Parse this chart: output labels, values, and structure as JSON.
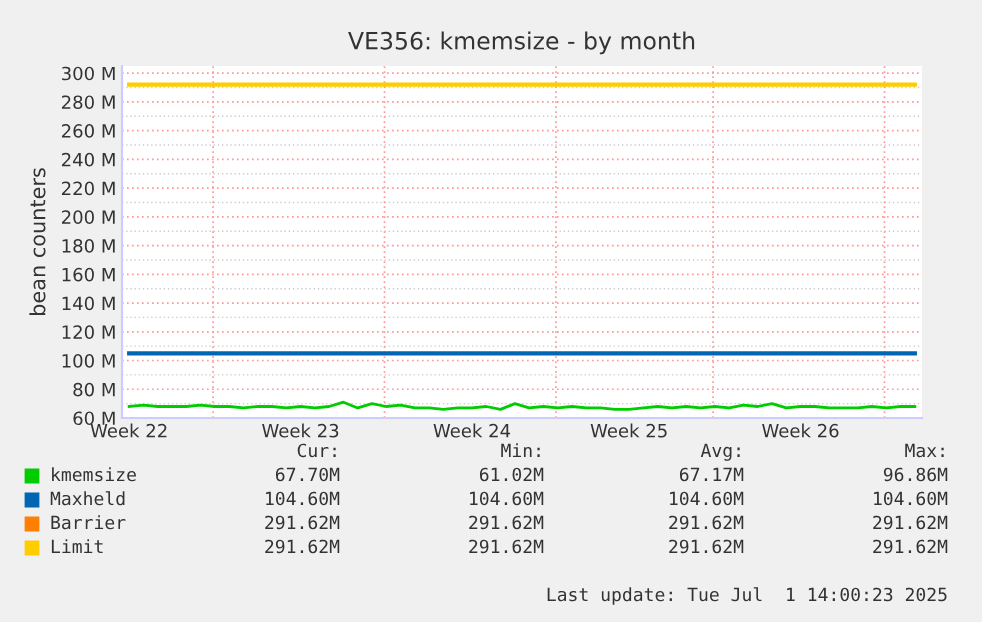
{
  "chart_data": {
    "type": "line",
    "title": "VE356: kmemsize - by month",
    "ylabel": "bean counters",
    "categories": [
      "Week 22",
      null,
      null,
      null,
      null,
      null,
      null,
      null,
      null,
      null,
      null,
      null,
      "Week 23",
      null,
      null,
      null,
      null,
      null,
      null,
      null,
      null,
      null,
      null,
      null,
      "Week 24",
      null,
      null,
      null,
      null,
      null,
      null,
      null,
      null,
      null,
      null,
      "Week 25",
      null,
      null,
      null,
      null,
      null,
      null,
      null,
      null,
      null,
      null,
      null,
      "Week 26",
      null,
      null,
      null,
      null,
      null,
      null,
      null,
      null
    ],
    "series": [
      {
        "name": "kmemsize",
        "color": "#00cc00",
        "values": [
          68,
          69,
          68,
          68,
          68,
          69,
          68,
          68,
          67,
          68,
          68,
          67,
          68,
          67,
          68,
          71,
          67,
          70,
          68,
          69,
          67,
          67,
          66,
          67,
          67,
          68,
          66,
          70,
          67,
          68,
          67,
          68,
          67,
          67,
          66,
          66,
          67,
          68,
          67,
          68,
          67,
          68,
          67,
          69,
          68,
          70,
          67,
          68,
          68,
          67,
          67,
          67,
          68,
          67,
          68,
          68
        ]
      },
      {
        "name": "Maxheld",
        "color": "#0066b3",
        "values": [
          105,
          105,
          105,
          105,
          105,
          105,
          105,
          105,
          105,
          105,
          105,
          105,
          105,
          105,
          105,
          105,
          105,
          105,
          105,
          105,
          105,
          105,
          105,
          105,
          105,
          105,
          105,
          105,
          105,
          105,
          105,
          105,
          105,
          105,
          105,
          105,
          105,
          105,
          105,
          105,
          105,
          105,
          105,
          105,
          105,
          105,
          105,
          105,
          105,
          105,
          105,
          105,
          105,
          105,
          105,
          105
        ]
      },
      {
        "name": "Barrier",
        "color": "#ff8000",
        "values": [
          null,
          null,
          null,
          null,
          null,
          null,
          null,
          null,
          null,
          null,
          null,
          null,
          null,
          null,
          null,
          null,
          null,
          null,
          null,
          null,
          null,
          null,
          null,
          null,
          null,
          null,
          null,
          null,
          null,
          null,
          null,
          null,
          null,
          null,
          null,
          null,
          null,
          null,
          null,
          null,
          null,
          null,
          null,
          null,
          null,
          null,
          null,
          null,
          null,
          null,
          null,
          null,
          null,
          null,
          null,
          null
        ]
      },
      {
        "name": "Limit",
        "color": "#ffcc00",
        "values": [
          292,
          292,
          292,
          292,
          292,
          292,
          292,
          292,
          292,
          292,
          292,
          292,
          292,
          292,
          292,
          292,
          292,
          292,
          292,
          292,
          292,
          292,
          292,
          292,
          292,
          292,
          292,
          292,
          292,
          292,
          292,
          292,
          292,
          292,
          292,
          292,
          292,
          292,
          292,
          292,
          292,
          292,
          292,
          292,
          292,
          292,
          292,
          292,
          292,
          292,
          292,
          292,
          292,
          292,
          292,
          292
        ]
      }
    ],
    "ylim": [
      60,
      305
    ],
    "yticks": [
      {
        "value": 60,
        "label": "60 M"
      },
      {
        "value": 80,
        "label": "80 M"
      },
      {
        "value": 100,
        "label": "100 M"
      },
      {
        "value": 120,
        "label": "120 M"
      },
      {
        "value": 140,
        "label": "140 M"
      },
      {
        "value": 160,
        "label": "160 M"
      },
      {
        "value": 180,
        "label": "180 M"
      },
      {
        "value": 200,
        "label": "200 M"
      },
      {
        "value": 220,
        "label": "220 M"
      },
      {
        "value": 240,
        "label": "240 M"
      },
      {
        "value": 260,
        "label": "260 M"
      },
      {
        "value": 280,
        "label": "280 M"
      },
      {
        "value": 300,
        "label": "300 M"
      }
    ],
    "grid": true,
    "legend": "bottom",
    "annotations": [
      "Cur:",
      "Min:",
      "Avg:",
      "Max:",
      "67.70M",
      "61.02M",
      "67.17M",
      "96.86M",
      "104.60M",
      "104.60M",
      "104.60M",
      "104.60M",
      "291.62M",
      "291.62M",
      "291.62M",
      "291.62M",
      "291.62M",
      "291.62M",
      "291.62M",
      "291.62M",
      "Last update: Tue Jul  1 14:00:23 2025"
    ]
  }
}
